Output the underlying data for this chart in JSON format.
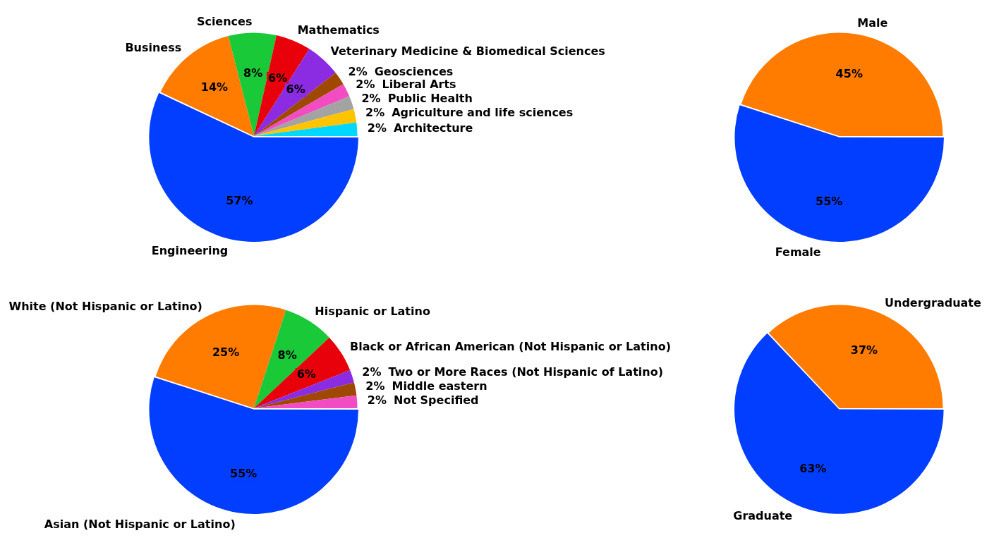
{
  "chart_data": [
    {
      "type": "pie",
      "categories": [
        "Engineering",
        "Business",
        "Sciences",
        "Mathematics",
        "Veterinary Medicine & Biomedical Sciences",
        "Geosciences",
        "Liberal Arts",
        "Public Health",
        "Agriculture and life sciences",
        "Architecture"
      ],
      "values": [
        57,
        14,
        7.5,
        5.5,
        5.5,
        2.1,
        2.1,
        2.1,
        2.1,
        2.1
      ],
      "value_labels": [
        "57%",
        "14%",
        "8%",
        "6%",
        "6%",
        "2%",
        "2%",
        "2%",
        "2%",
        "2%"
      ],
      "colors": [
        "#023eff",
        "#ff7c00",
        "#1ac938",
        "#e8000b",
        "#8b2be2",
        "#9f4800",
        "#f14cc1",
        "#a3a3a3",
        "#ffc400",
        "#00d7ff"
      ],
      "legend": false
    },
    {
      "type": "pie",
      "categories": [
        "Female",
        "Male"
      ],
      "values": [
        55,
        45
      ],
      "value_labels": [
        "55%",
        "45%"
      ],
      "colors": [
        "#023eff",
        "#ff7c00"
      ],
      "legend": false
    },
    {
      "type": "pie",
      "categories": [
        "Asian (Not Hispanic or Latino)",
        "White (Not Hispanic or Latino)",
        "Hispanic or Latino",
        "Black or African American (Not Hispanic or Latino)",
        "Two or More Races (Not Hispanic of Latino)",
        "Middle eastern",
        "Not Specified"
      ],
      "values": [
        55,
        25,
        8,
        6,
        2,
        2,
        2
      ],
      "value_labels": [
        "55%",
        "25%",
        "8%",
        "6%",
        "2%",
        "2%",
        "2%"
      ],
      "colors": [
        "#023eff",
        "#ff7c00",
        "#1ac938",
        "#e8000b",
        "#8b2be2",
        "#9f4800",
        "#f14cc1"
      ],
      "legend": false
    },
    {
      "type": "pie",
      "categories": [
        "Graduate",
        "Undergraduate"
      ],
      "values": [
        63,
        37
      ],
      "value_labels": [
        "63%",
        "37%"
      ],
      "colors": [
        "#023eff",
        "#ff7c00"
      ],
      "legend": false
    }
  ]
}
